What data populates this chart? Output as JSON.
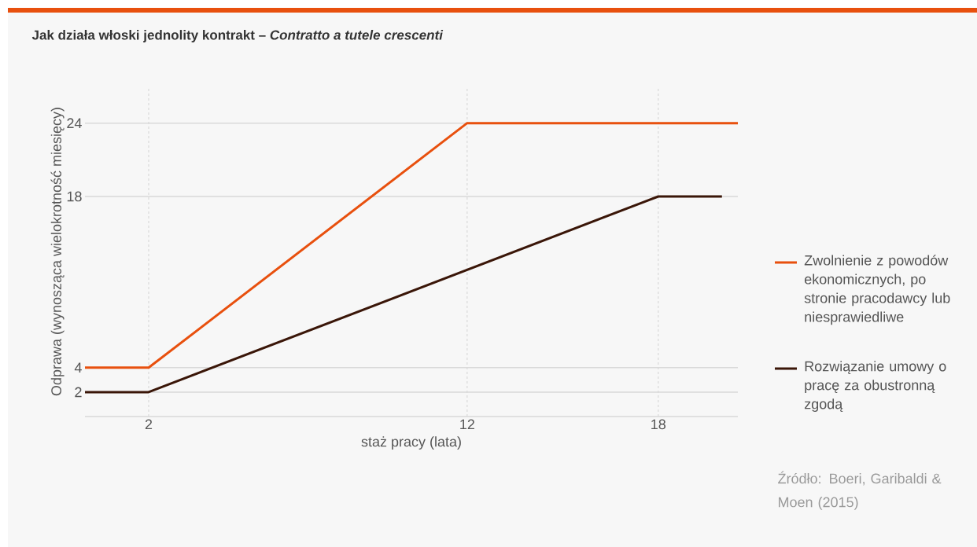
{
  "chart_data": {
    "type": "line",
    "title": "Jak działa włoski jednolity kontrakt – *Contratto a tutele crescenti*",
    "xlabel": "staż pracy (lata)",
    "ylabel": "Odprawa (wynosząca wielokrotność miesięcy)",
    "series": [
      {
        "name": "Zwolnienie z powodów ekonomicznych, po stronie pracodawcy lub niesprawiedliwe",
        "color": "#e8500e",
        "x": [
          0,
          2,
          12,
          20.5
        ],
        "values": [
          4,
          4,
          24,
          24
        ]
      },
      {
        "name": "Rozwiązanie umowy o pracę za obustronną zgodą",
        "color": "#3a1608",
        "x": [
          0,
          2,
          18,
          20
        ],
        "values": [
          2,
          2,
          18,
          18
        ]
      }
    ],
    "xlim": [
      0,
      20.5
    ],
    "xticks": [
      2,
      12,
      18
    ],
    "ylim": [
      0,
      27
    ],
    "yticks": [
      2,
      4,
      18,
      24
    ],
    "grid": true,
    "legend": "right",
    "marker": "none",
    "line_style": "solid",
    "annotations": [
      "Źródło: Boeri, Garibaldi & Moen (2015)"
    ]
  }
}
